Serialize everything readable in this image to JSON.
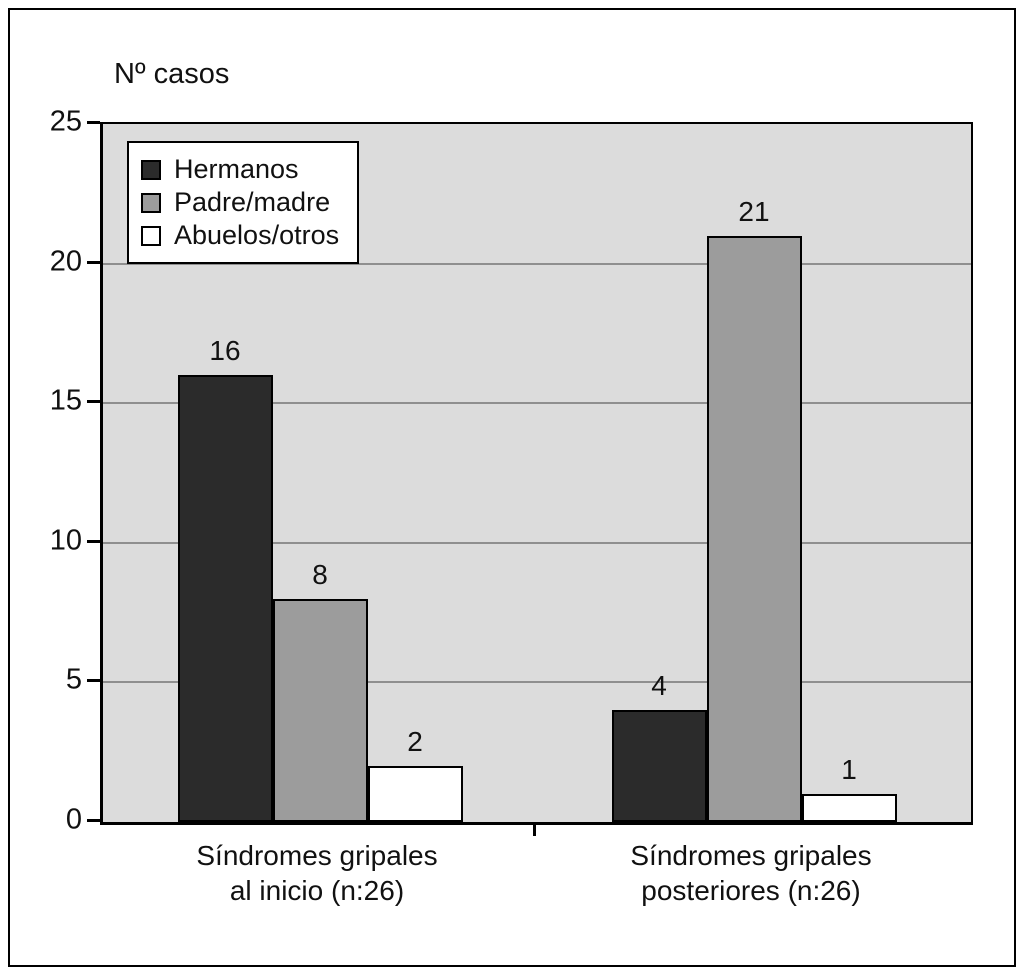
{
  "figure": {
    "background": "#ffffff",
    "border_color": "#000000"
  },
  "chart_data": {
    "type": "bar",
    "title": "",
    "ylabel": "Nº casos",
    "xlabel": "",
    "ylim": [
      0,
      25
    ],
    "yticks": [
      0,
      5,
      10,
      15,
      20,
      25
    ],
    "categories": [
      [
        "Síndromes gripales",
        "al inicio (n:26)"
      ],
      [
        "Síndromes gripales",
        "posteriores (n:26)"
      ]
    ],
    "series": [
      {
        "name": "Hermanos",
        "color": "#2b2b2b",
        "values": [
          16,
          4
        ]
      },
      {
        "name": "Padre/madre",
        "color": "#9c9c9c",
        "values": [
          8,
          21
        ]
      },
      {
        "name": "Abuelos/otros",
        "color": "#ffffff",
        "values": [
          2,
          1
        ]
      }
    ],
    "bar_value_labels": [
      [
        16,
        8,
        2
      ],
      [
        4,
        21,
        1
      ]
    ],
    "legend_position": "top-left",
    "grid": true,
    "plot_background": "#dcdcdc",
    "gridline_color": "#8f8f8f"
  }
}
